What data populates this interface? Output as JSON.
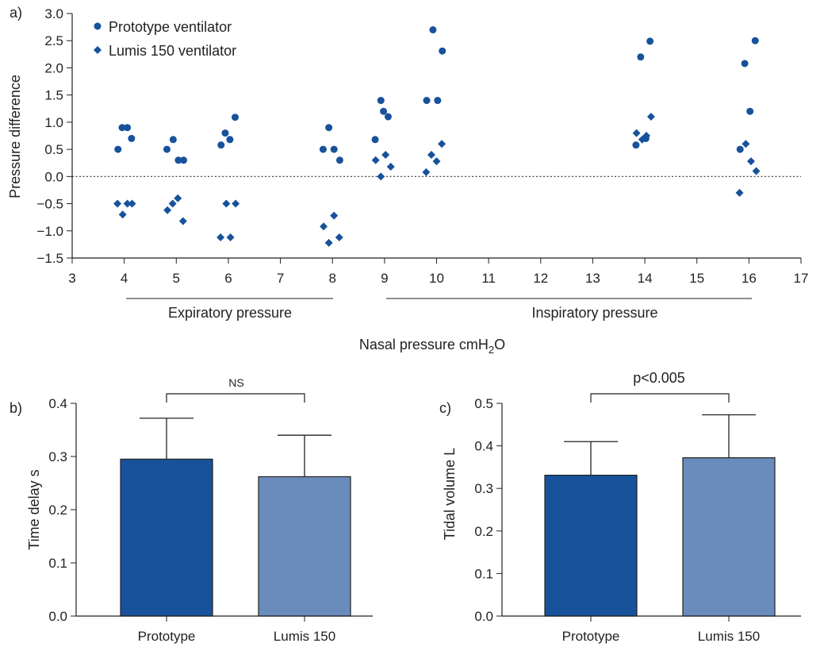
{
  "colors": {
    "prototype": "#17529b",
    "lumis": "#6a8cbc",
    "axis": "#222222"
  },
  "chart_data": [
    {
      "type": "scatter",
      "panel_label": "a)",
      "xlabel_main": "Nasal pressure cmH",
      "xlabel_sub": "2",
      "xlabel_tail": "O",
      "ylabel": "Pressure difference",
      "xlim": [
        3,
        17
      ],
      "ylim": [
        -1.5,
        3.0
      ],
      "xticks": [
        "3",
        "4",
        "5",
        "6",
        "7",
        "8",
        "9",
        "10",
        "11",
        "12",
        "13",
        "14",
        "15",
        "16",
        "17"
      ],
      "yticks": [
        "-1.5",
        "-1.0",
        "-0.5",
        "0.0",
        "0.5",
        "1.0",
        "1.5",
        "2.0",
        "2.5",
        "3.0"
      ],
      "zero_line": "dotted",
      "groups": [
        {
          "label": "Expiratory pressure",
          "x_range": [
            4,
            8
          ]
        },
        {
          "label": "Inspiratory pressure",
          "x_range": [
            9,
            16
          ]
        }
      ],
      "legend_position": "top-left",
      "series": [
        {
          "name": "Prototype ventilator",
          "marker": "circle",
          "points": [
            [
              3.88,
              0.5
            ],
            [
              3.96,
              0.9
            ],
            [
              4.06,
              0.9
            ],
            [
              4.14,
              0.7
            ],
            [
              4.82,
              0.5
            ],
            [
              4.94,
              0.68
            ],
            [
              5.04,
              0.3
            ],
            [
              5.14,
              0.3
            ],
            [
              5.86,
              0.58
            ],
            [
              5.94,
              0.8
            ],
            [
              6.03,
              0.68
            ],
            [
              6.13,
              1.09
            ],
            [
              7.82,
              0.5
            ],
            [
              7.93,
              0.9
            ],
            [
              8.03,
              0.5
            ],
            [
              8.14,
              0.3
            ],
            [
              8.82,
              0.68
            ],
            [
              8.93,
              1.4
            ],
            [
              8.98,
              1.2
            ],
            [
              9.07,
              1.1
            ],
            [
              9.81,
              1.4
            ],
            [
              9.93,
              2.7
            ],
            [
              10.02,
              1.4
            ],
            [
              10.11,
              2.31
            ],
            [
              13.83,
              0.58
            ],
            [
              13.92,
              2.2
            ],
            [
              14.02,
              0.7
            ],
            [
              14.1,
              2.49
            ],
            [
              15.83,
              0.5
            ],
            [
              15.92,
              2.08
            ],
            [
              16.02,
              1.2
            ],
            [
              16.12,
              2.5
            ]
          ]
        },
        {
          "name": "Lumis 150 ventilator",
          "marker": "diamond",
          "points": [
            [
              3.87,
              -0.5
            ],
            [
              3.97,
              -0.7
            ],
            [
              4.06,
              -0.5
            ],
            [
              4.15,
              -0.5
            ],
            [
              4.83,
              -0.62
            ],
            [
              4.93,
              -0.5
            ],
            [
              5.03,
              -0.4
            ],
            [
              5.13,
              -0.82
            ],
            [
              5.85,
              -1.12
            ],
            [
              5.96,
              -0.5
            ],
            [
              6.04,
              -1.12
            ],
            [
              6.14,
              -0.5
            ],
            [
              7.83,
              -0.92
            ],
            [
              7.93,
              -1.22
            ],
            [
              8.03,
              -0.72
            ],
            [
              8.13,
              -1.12
            ],
            [
              8.83,
              0.3
            ],
            [
              8.93,
              0.0
            ],
            [
              9.02,
              0.4
            ],
            [
              9.12,
              0.18
            ],
            [
              9.8,
              0.08
            ],
            [
              9.9,
              0.4
            ],
            [
              10.0,
              0.28
            ],
            [
              10.1,
              0.6
            ],
            [
              13.84,
              0.8
            ],
            [
              13.95,
              0.68
            ],
            [
              14.03,
              0.75
            ],
            [
              14.12,
              1.1
            ],
            [
              15.82,
              -0.3
            ],
            [
              15.94,
              0.6
            ],
            [
              16.04,
              0.28
            ],
            [
              16.14,
              0.1
            ]
          ]
        }
      ]
    },
    {
      "type": "bar",
      "panel_label": "b)",
      "ylabel": "Time delay s",
      "categories": [
        "Prototype",
        "Lumis 150"
      ],
      "values": [
        0.295,
        0.262
      ],
      "error_upper": [
        0.372,
        0.34
      ],
      "ylim": [
        0.0,
        0.4
      ],
      "yticks": [
        "0.0",
        "0.1",
        "0.2",
        "0.3",
        "0.4"
      ],
      "significance": "NS"
    },
    {
      "type": "bar",
      "panel_label": "c)",
      "ylabel": "Tidal volume L",
      "categories": [
        "Prototype",
        "Lumis 150"
      ],
      "values": [
        0.331,
        0.372
      ],
      "error_upper": [
        0.41,
        0.473
      ],
      "ylim": [
        0.0,
        0.5
      ],
      "yticks": [
        "0.0",
        "0.1",
        "0.2",
        "0.3",
        "0.4",
        "0.5"
      ],
      "significance": "p<0.005"
    }
  ]
}
